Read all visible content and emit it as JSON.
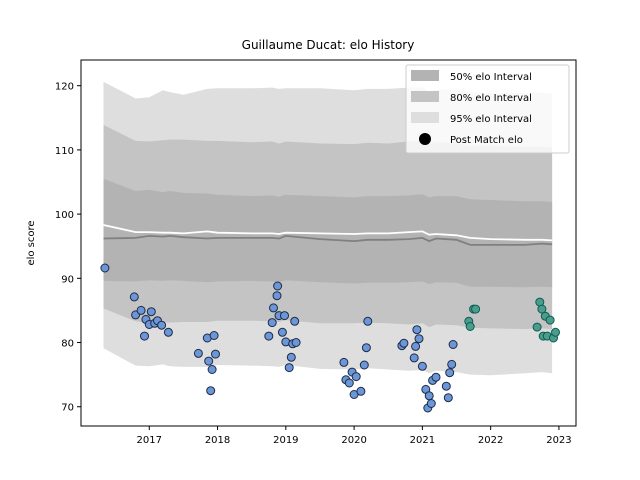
{
  "chart_data": {
    "type": "scatter",
    "title": "Guillaume Ducat: elo History",
    "xlabel": "",
    "ylabel": "elo score",
    "xlim": [
      2016.0,
      2023.25
    ],
    "ylim": [
      67,
      124
    ],
    "x_ticks": [
      2017,
      2018,
      2019,
      2020,
      2021,
      2022,
      2023
    ],
    "y_ticks": [
      70,
      80,
      90,
      100,
      110,
      120
    ],
    "legend_position": "top-right",
    "legend": [
      {
        "label": "50% elo Interval",
        "color": "#b3b3b3",
        "kind": "patch"
      },
      {
        "label": "80% elo Interval",
        "color": "#c4c4c4",
        "kind": "patch"
      },
      {
        "label": "95% elo Interval",
        "color": "#dedede",
        "kind": "patch"
      },
      {
        "label": "Post Match elo",
        "color": "#000000",
        "kind": "marker"
      }
    ],
    "band_x": [
      2016.33,
      2016.8,
      2017.0,
      2017.2,
      2017.3,
      2017.5,
      2017.85,
      2018.0,
      2018.5,
      2018.8,
      2018.9,
      2019.0,
      2019.5,
      2020.0,
      2020.2,
      2020.5,
      2020.8,
      2021.0,
      2021.1,
      2021.2,
      2021.5,
      2021.7,
      2022.0,
      2022.5,
      2022.75,
      2022.9
    ],
    "median": [
      96.2,
      96.3,
      96.6,
      96.5,
      96.6,
      96.4,
      96.2,
      96.3,
      96.3,
      96.3,
      96.2,
      96.6,
      96.1,
      95.8,
      96.0,
      96.0,
      96.1,
      96.3,
      95.8,
      96.2,
      96.0,
      95.2,
      95.2,
      95.2,
      95.4,
      95.3
    ],
    "mean": [
      98.3,
      97.2,
      97.2,
      97.1,
      97.1,
      97.0,
      97.3,
      97.1,
      97.0,
      97.0,
      96.9,
      97.1,
      97.0,
      96.9,
      97.0,
      97.0,
      97.2,
      97.3,
      96.8,
      96.9,
      96.7,
      96.3,
      96.1,
      96.0,
      96.0,
      95.9
    ],
    "interval_50": {
      "lower": [
        89.6,
        89.5,
        89.7,
        89.6,
        89.7,
        89.6,
        89.4,
        89.5,
        89.6,
        89.5,
        89.4,
        89.7,
        89.4,
        89.2,
        89.3,
        89.3,
        89.4,
        89.5,
        89.1,
        89.4,
        89.3,
        88.7,
        88.7,
        88.6,
        88.7,
        88.6
      ],
      "upper": [
        105.5,
        103.6,
        103.8,
        103.4,
        103.6,
        103.3,
        103.2,
        103.0,
        102.8,
        102.9,
        102.7,
        103.0,
        102.8,
        102.6,
        102.8,
        102.8,
        102.9,
        103.1,
        102.6,
        102.8,
        102.8,
        102.3,
        102.2,
        102.0,
        102.0,
        101.9
      ]
    },
    "interval_80": {
      "lower": [
        85.3,
        83.3,
        83.0,
        83.2,
        83.1,
        83.2,
        83.2,
        83.4,
        83.4,
        83.3,
        83.2,
        83.5,
        83.0,
        83.0,
        83.1,
        83.0,
        82.8,
        83.0,
        82.4,
        82.8,
        82.7,
        82.3,
        82.2,
        82.1,
        82.2,
        82.1
      ],
      "upper": [
        113.9,
        111.4,
        111.3,
        111.5,
        111.6,
        111.6,
        111.4,
        111.4,
        111.2,
        111.3,
        111.0,
        111.3,
        111.0,
        110.9,
        111.1,
        111.0,
        111.3,
        111.4,
        111.0,
        111.2,
        111.0,
        110.6,
        110.6,
        110.5,
        110.5,
        110.4
      ]
    },
    "interval_95": {
      "lower": [
        79.1,
        76.4,
        76.3,
        76.6,
        76.3,
        76.2,
        76.2,
        76.5,
        76.4,
        76.3,
        76.2,
        76.5,
        75.9,
        75.8,
        76.0,
        75.8,
        75.6,
        75.7,
        75.2,
        75.6,
        75.4,
        75.0,
        74.9,
        75.2,
        75.4,
        75.2
      ],
      "upper": [
        120.6,
        118.0,
        118.2,
        119.3,
        119.0,
        118.6,
        119.5,
        119.6,
        119.6,
        119.7,
        119.5,
        119.6,
        119.6,
        119.3,
        119.5,
        119.5,
        119.7,
        119.8,
        119.0,
        119.4,
        119.4,
        119.0,
        118.8,
        118.9,
        118.9,
        118.8
      ]
    },
    "series": [
      {
        "marker_color": "#6b96d8",
        "edge_color": "#1f2a44",
        "points": [
          [
            2016.35,
            91.6
          ],
          [
            2016.78,
            87.1
          ],
          [
            2016.8,
            84.3
          ],
          [
            2016.88,
            85.0
          ],
          [
            2016.93,
            81.0
          ],
          [
            2016.95,
            83.6
          ],
          [
            2017.0,
            82.8
          ],
          [
            2017.03,
            84.8
          ],
          [
            2017.08,
            83.0
          ],
          [
            2017.12,
            83.4
          ],
          [
            2017.18,
            82.7
          ],
          [
            2017.28,
            81.6
          ],
          [
            2017.72,
            78.3
          ],
          [
            2017.85,
            80.7
          ],
          [
            2017.87,
            77.1
          ],
          [
            2017.92,
            75.8
          ],
          [
            2017.9,
            72.5
          ],
          [
            2017.95,
            81.1
          ],
          [
            2017.97,
            78.2
          ],
          [
            2018.75,
            81.0
          ],
          [
            2018.8,
            83.1
          ],
          [
            2018.82,
            85.4
          ],
          [
            2018.87,
            87.3
          ],
          [
            2018.88,
            88.8
          ],
          [
            2018.9,
            84.2
          ],
          [
            2018.95,
            81.6
          ],
          [
            2018.98,
            84.2
          ],
          [
            2019.0,
            80.1
          ],
          [
            2019.05,
            76.1
          ],
          [
            2019.08,
            77.7
          ],
          [
            2019.1,
            79.8
          ],
          [
            2019.13,
            83.3
          ],
          [
            2019.15,
            80.0
          ],
          [
            2019.85,
            76.9
          ],
          [
            2019.88,
            74.2
          ],
          [
            2019.93,
            73.7
          ],
          [
            2019.97,
            75.4
          ],
          [
            2020.0,
            71.9
          ],
          [
            2020.03,
            74.7
          ],
          [
            2020.1,
            72.4
          ],
          [
            2020.15,
            76.5
          ],
          [
            2020.18,
            79.2
          ],
          [
            2020.2,
            83.3
          ],
          [
            2020.7,
            79.5
          ],
          [
            2020.73,
            79.9
          ],
          [
            2020.88,
            77.6
          ],
          [
            2020.9,
            79.4
          ],
          [
            2020.92,
            82.0
          ],
          [
            2020.95,
            80.6
          ],
          [
            2021.0,
            76.3
          ],
          [
            2021.05,
            72.7
          ],
          [
            2021.08,
            69.8
          ],
          [
            2021.1,
            71.7
          ],
          [
            2021.13,
            70.5
          ],
          [
            2021.15,
            74.1
          ],
          [
            2021.2,
            74.6
          ],
          [
            2021.35,
            73.2
          ],
          [
            2021.38,
            71.4
          ],
          [
            2021.4,
            75.3
          ],
          [
            2021.43,
            76.6
          ],
          [
            2021.45,
            79.7
          ]
        ]
      },
      {
        "marker_color": "#4a9d8a",
        "edge_color": "#0f5a55",
        "points": [
          [
            2021.68,
            83.3
          ],
          [
            2021.7,
            82.5
          ],
          [
            2021.75,
            85.2
          ],
          [
            2021.78,
            85.2
          ],
          [
            2022.68,
            82.4
          ],
          [
            2022.72,
            86.3
          ],
          [
            2022.75,
            85.2
          ],
          [
            2022.77,
            81.0
          ],
          [
            2022.8,
            84.1
          ],
          [
            2022.83,
            81.0
          ],
          [
            2022.87,
            83.5
          ],
          [
            2022.92,
            80.7
          ],
          [
            2022.95,
            81.6
          ]
        ]
      }
    ]
  }
}
